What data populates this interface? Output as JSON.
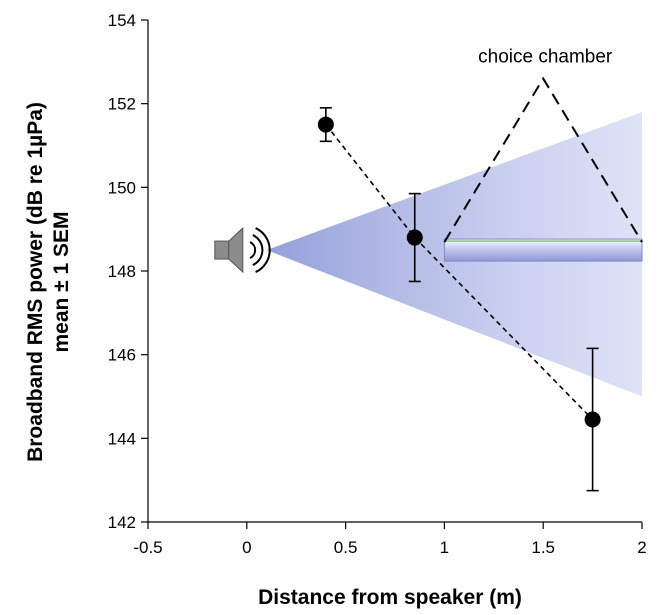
{
  "chart_data": {
    "type": "scatter",
    "title": "",
    "xlabel": "Distance from speaker (m)",
    "ylabel_line1": "Broadband RMS power (dB re 1µPa)",
    "ylabel_line2": "mean ± 1 SEM",
    "xlim": [
      -0.5,
      2
    ],
    "ylim": [
      142,
      154
    ],
    "x_ticks": [
      -0.5,
      0,
      0.5,
      1,
      1.5,
      2
    ],
    "x_tick_labels": [
      "-0.5",
      "0",
      "0.5",
      "1",
      "1.5",
      "2"
    ],
    "y_ticks": [
      142,
      144,
      146,
      148,
      150,
      152,
      154
    ],
    "y_tick_labels": [
      "142",
      "144",
      "146",
      "148",
      "150",
      "152",
      "154"
    ],
    "grid": false,
    "legend": "none",
    "series": [
      {
        "points": [
          {
            "x": 0.4,
            "y": 151.5,
            "err": 0.4
          },
          {
            "x": 0.85,
            "y": 148.8,
            "err": 1.05
          },
          {
            "x": 1.75,
            "y": 144.45,
            "err": 1.7
          }
        ],
        "line_style": "dashed",
        "marker_color": "#000000"
      }
    ],
    "annotations": {
      "chamber_label": "choice chamber",
      "chamber_x_range": [
        1.0,
        2.0
      ],
      "chamber_y": 148.5,
      "chamber_label_apex": {
        "x": 1.5,
        "y": 152.6
      }
    },
    "colors": {
      "beam": "#aab4e8",
      "speaker": "#8c8c8c",
      "chamber": "#9aa2dc"
    },
    "icons": [
      "speaker-icon"
    ]
  }
}
